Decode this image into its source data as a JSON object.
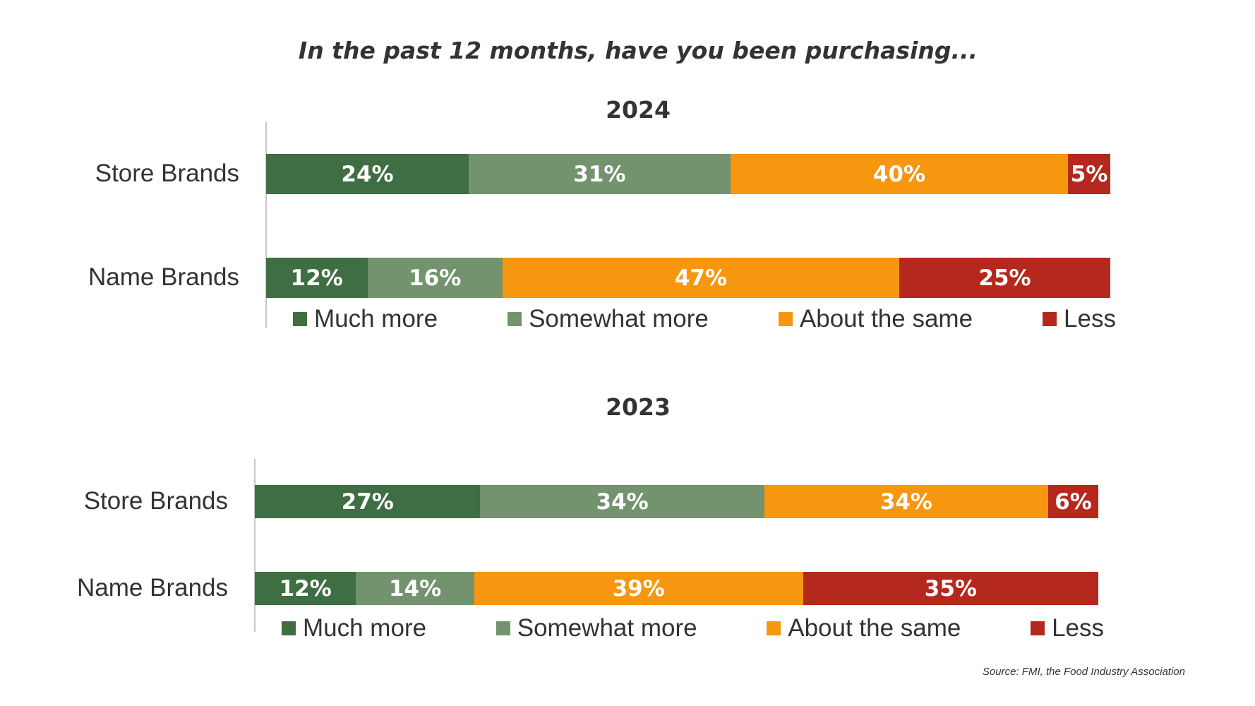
{
  "chart_data": [
    {
      "type": "bar",
      "orientation": "horizontal",
      "stacked": true,
      "title": "2024",
      "categories": [
        "Store Brands",
        "Name Brands"
      ],
      "series": [
        {
          "name": "Much more",
          "color": "#3f6e42",
          "values": [
            24,
            12
          ]
        },
        {
          "name": "Somewhat more",
          "color": "#72936e",
          "values": [
            31,
            16
          ]
        },
        {
          "name": "About the same",
          "color": "#f7960f",
          "values": [
            40,
            47
          ]
        },
        {
          "name": "Less",
          "color": "#b5281e",
          "values": [
            5,
            25
          ]
        }
      ],
      "xlim": [
        0,
        100
      ],
      "grid": false,
      "legend": "bottom"
    },
    {
      "type": "bar",
      "orientation": "horizontal",
      "stacked": true,
      "title": "2023",
      "categories": [
        "Store Brands",
        "Name Brands"
      ],
      "series": [
        {
          "name": "Much more",
          "color": "#3f6e42",
          "values": [
            27,
            12
          ]
        },
        {
          "name": "Somewhat more",
          "color": "#72936e",
          "values": [
            34,
            14
          ]
        },
        {
          "name": "About the same",
          "color": "#f7960f",
          "values": [
            34,
            39
          ]
        },
        {
          "name": "Less",
          "color": "#b5281e",
          "values": [
            6,
            35
          ]
        }
      ],
      "xlim": [
        0,
        100
      ],
      "grid": false,
      "legend": "bottom"
    }
  ],
  "header": {
    "title": "In the past 12 months, have you been purchasing..."
  },
  "footer": {
    "source": "Source: FMI, the Food Industry Association"
  }
}
